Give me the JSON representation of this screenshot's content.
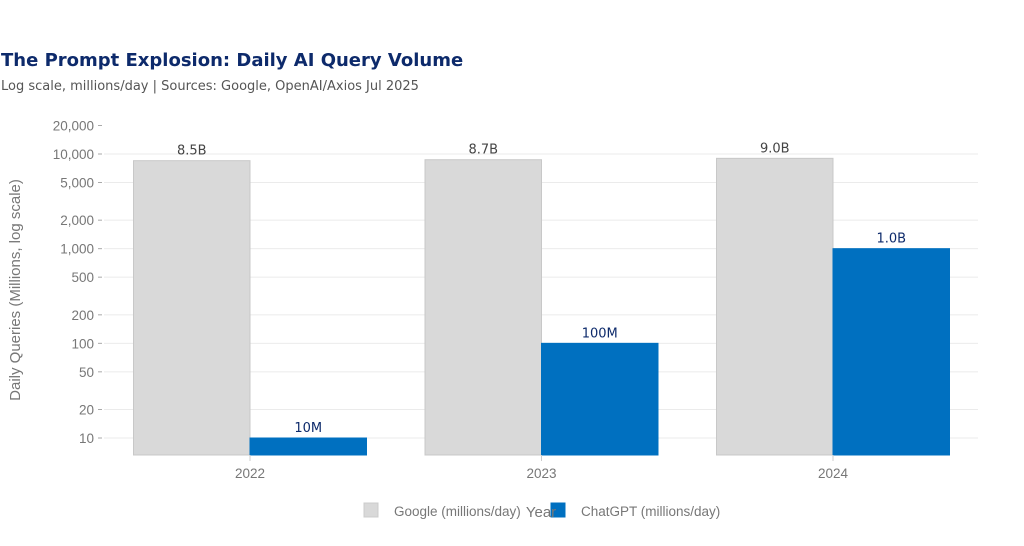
{
  "header": {
    "title": "The Prompt Explosion: Daily AI Query Volume",
    "subtitle": "Log scale, millions/day | Sources: Google, OpenAI/Axios Jul 2025"
  },
  "chart_data": {
    "type": "bar",
    "title": "The Prompt Explosion: Daily AI Query Volume",
    "subtitle": "Log scale, millions/day | Sources: Google, OpenAI/Axios Jul 2025",
    "xlabel": "Year",
    "ylabel": "Daily Queries (Millions, log scale)",
    "yscale": "log",
    "ylim": [
      6.8,
      20000
    ],
    "yticks": [
      10,
      20,
      50,
      100,
      200,
      500,
      1000,
      2000,
      5000,
      10000,
      20000
    ],
    "ytick_labels": [
      "10",
      "20",
      "50",
      "100",
      "200",
      "500",
      "1,000",
      "2,000",
      "5,000",
      "10,000",
      "20,000"
    ],
    "grid": true,
    "categories": [
      "2022",
      "2023",
      "2024"
    ],
    "series": [
      {
        "name": "Google (millions/day)",
        "color": "#d9d9d9",
        "values": [
          8500,
          8700,
          9000
        ],
        "labels": [
          "8.5B",
          "8.7B",
          "9.0B"
        ],
        "label_color": "#444444"
      },
      {
        "name": "ChatGPT (millions/day)",
        "color": "#0070c0",
        "values": [
          10,
          100,
          1000
        ],
        "labels": [
          "10M",
          "100M",
          "1.0B"
        ],
        "label_color": "#0d2a6b"
      }
    ],
    "legend_position": "bottom"
  }
}
